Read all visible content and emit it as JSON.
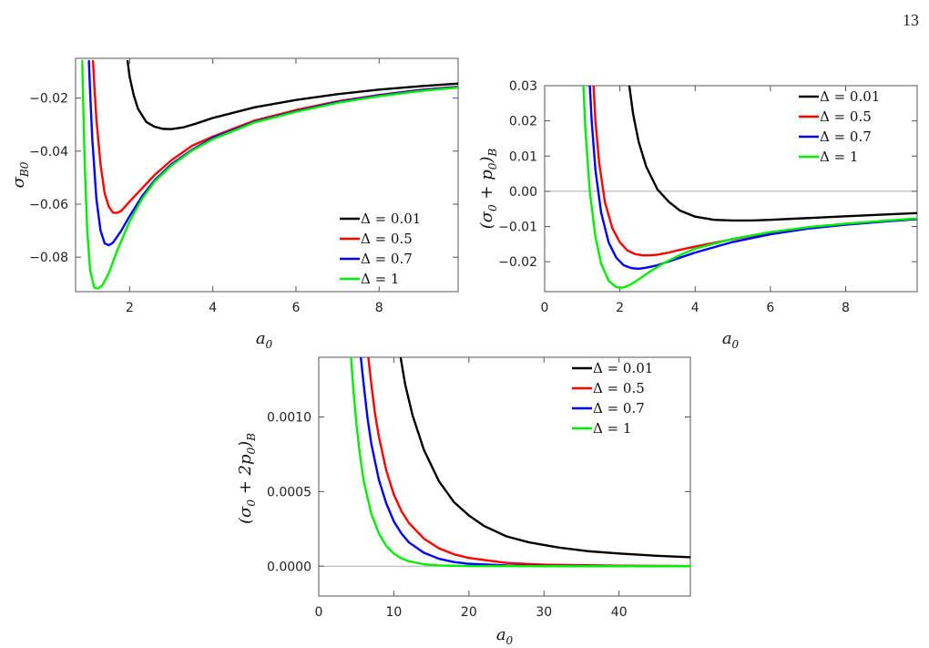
{
  "page_number": "13",
  "chart_data": [
    {
      "type": "line",
      "id": "panel-1",
      "xlabel": "a_0",
      "ylabel": "σ_{B0}",
      "xlim": [
        0.7,
        9.9
      ],
      "ylim": [
        -0.093,
        -0.005
      ],
      "xticks": [
        2,
        4,
        6,
        8
      ],
      "yticks": [
        -0.02,
        -0.04,
        -0.06,
        -0.08
      ],
      "ytick_labels": [
        "−0.02",
        "−0.04",
        "−0.06",
        "−0.08"
      ],
      "zero_line": false,
      "legend_position": "bottom-right",
      "series": [
        {
          "name": "Δ = 0.01",
          "color": "#000000",
          "x": [
            1.95,
            2.0,
            2.1,
            2.2,
            2.4,
            2.6,
            2.8,
            3.0,
            3.3,
            3.6,
            4.0,
            5.0,
            6.0,
            7.0,
            8.0,
            9.0,
            9.9
          ],
          "y": [
            -0.006,
            -0.012,
            -0.019,
            -0.024,
            -0.029,
            -0.0308,
            -0.0316,
            -0.0317,
            -0.031,
            -0.0296,
            -0.0275,
            -0.0235,
            -0.0207,
            -0.0185,
            -0.0168,
            -0.0155,
            -0.0145
          ]
        },
        {
          "name": "Δ = 0.5",
          "color": "#ff0000",
          "x": [
            1.12,
            1.15,
            1.2,
            1.3,
            1.4,
            1.5,
            1.6,
            1.7,
            1.8,
            2.0,
            2.3,
            2.6,
            3.0,
            3.5,
            4.0,
            5.0,
            6.0,
            7.0,
            8.0,
            9.0,
            9.9
          ],
          "y": [
            -0.006,
            -0.015,
            -0.028,
            -0.045,
            -0.056,
            -0.061,
            -0.0632,
            -0.0633,
            -0.0625,
            -0.059,
            -0.054,
            -0.049,
            -0.0435,
            -0.038,
            -0.0345,
            -0.0285,
            -0.0245,
            -0.0212,
            -0.0188,
            -0.0169,
            -0.0157
          ]
        },
        {
          "name": "Δ = 0.7",
          "color": "#0000ff",
          "x": [
            1.02,
            1.05,
            1.1,
            1.2,
            1.3,
            1.4,
            1.5,
            1.6,
            1.8,
            2.0,
            2.3,
            2.6,
            3.0,
            3.5,
            4.0,
            5.0,
            6.0,
            7.0,
            8.0,
            9.0,
            9.9
          ],
          "y": [
            -0.006,
            -0.018,
            -0.035,
            -0.058,
            -0.07,
            -0.0748,
            -0.0755,
            -0.0745,
            -0.07,
            -0.0645,
            -0.057,
            -0.051,
            -0.045,
            -0.0395,
            -0.035,
            -0.029,
            -0.025,
            -0.0215,
            -0.019,
            -0.017,
            -0.0158
          ]
        },
        {
          "name": "Δ = 1",
          "color": "#00ee00",
          "x": [
            0.86,
            0.88,
            0.92,
            0.98,
            1.05,
            1.15,
            1.25,
            1.35,
            1.5,
            1.7,
            2.0,
            2.3,
            2.6,
            3.0,
            3.5,
            4.0,
            5.0,
            6.0,
            7.0,
            8.0,
            9.0,
            9.9
          ],
          "y": [
            -0.006,
            -0.02,
            -0.045,
            -0.07,
            -0.085,
            -0.0915,
            -0.0918,
            -0.0905,
            -0.086,
            -0.0775,
            -0.0665,
            -0.058,
            -0.0515,
            -0.0455,
            -0.0398,
            -0.0355,
            -0.0292,
            -0.0252,
            -0.0218,
            -0.0193,
            -0.0173,
            -0.016
          ]
        }
      ]
    },
    {
      "type": "line",
      "id": "panel-2",
      "xlabel": "a_0",
      "ylabel": "(σ_0 + p_0)_B",
      "xlim": [
        0,
        9.9
      ],
      "ylim": [
        -0.0285,
        0.03
      ],
      "xticks": [
        0,
        2,
        4,
        6,
        8
      ],
      "yticks": [
        0.03,
        0.02,
        0.01,
        0.0,
        -0.01,
        -0.02
      ],
      "ytick_labels": [
        "0.03",
        "0.02",
        "0.01",
        "0.00",
        "−0.01",
        "−0.02"
      ],
      "zero_line": true,
      "legend_position": "top-right",
      "series": [
        {
          "name": "Δ = 0.01",
          "color": "#000000",
          "x": [
            2.25,
            2.35,
            2.5,
            2.7,
            3.0,
            3.3,
            3.6,
            4.0,
            4.5,
            5.0,
            5.5,
            6.0,
            7.0,
            8.0,
            9.0,
            9.9
          ],
          "y": [
            0.03,
            0.022,
            0.014,
            0.007,
            0.0005,
            -0.003,
            -0.0055,
            -0.0072,
            -0.0081,
            -0.0083,
            -0.0083,
            -0.0081,
            -0.0076,
            -0.0071,
            -0.0066,
            -0.0062
          ]
        },
        {
          "name": "Δ = 0.5",
          "color": "#ff0000",
          "x": [
            1.3,
            1.35,
            1.45,
            1.6,
            1.8,
            2.0,
            2.2,
            2.4,
            2.6,
            2.8,
            3.0,
            3.3,
            3.6,
            4.0,
            5.0,
            6.0,
            7.0,
            8.0,
            9.0,
            9.9
          ],
          "y": [
            0.03,
            0.02,
            0.008,
            -0.003,
            -0.0105,
            -0.0145,
            -0.0168,
            -0.0178,
            -0.0182,
            -0.0182,
            -0.018,
            -0.0174,
            -0.0166,
            -0.0157,
            -0.0136,
            -0.0118,
            -0.0104,
            -0.0094,
            -0.0085,
            -0.0078
          ]
        },
        {
          "name": "Δ = 0.7",
          "color": "#0000ff",
          "x": [
            1.2,
            1.25,
            1.35,
            1.5,
            1.7,
            1.9,
            2.1,
            2.3,
            2.5,
            2.7,
            3.0,
            3.5,
            4.0,
            5.0,
            6.0,
            7.0,
            8.0,
            9.0,
            9.9
          ],
          "y": [
            0.03,
            0.02,
            0.006,
            -0.006,
            -0.0145,
            -0.0188,
            -0.021,
            -0.0218,
            -0.022,
            -0.0217,
            -0.021,
            -0.0192,
            -0.0174,
            -0.0144,
            -0.0122,
            -0.0106,
            -0.0095,
            -0.0086,
            -0.0079
          ]
        },
        {
          "name": "Δ = 1",
          "color": "#00ee00",
          "x": [
            1.03,
            1.08,
            1.2,
            1.35,
            1.5,
            1.7,
            1.9,
            2.0,
            2.1,
            2.3,
            2.5,
            2.8,
            3.2,
            3.6,
            4.0,
            5.0,
            6.0,
            7.0,
            8.0,
            9.0,
            9.9
          ],
          "y": [
            0.03,
            0.018,
            0.0,
            -0.013,
            -0.0205,
            -0.0254,
            -0.0272,
            -0.0274,
            -0.0273,
            -0.0264,
            -0.025,
            -0.0228,
            -0.0202,
            -0.0181,
            -0.0163,
            -0.0135,
            -0.0116,
            -0.0102,
            -0.0092,
            -0.0084,
            -0.0077
          ]
        }
      ]
    },
    {
      "type": "line",
      "id": "panel-3",
      "xlabel": "a_0",
      "ylabel": "(σ_0 + 2p_0)_B",
      "xlim": [
        0,
        49.5
      ],
      "ylim": [
        -0.0002,
        0.0014
      ],
      "xticks": [
        0,
        10,
        20,
        30,
        40
      ],
      "yticks": [
        0.001,
        0.0005,
        0.0
      ],
      "ytick_labels": [
        "0.0010",
        "0.0005",
        "0.0000"
      ],
      "zero_line": true,
      "legend_position": "top-right",
      "series": [
        {
          "name": "Δ = 0.01",
          "color": "#000000",
          "x": [
            10.9,
            11.5,
            12.5,
            14,
            16,
            18,
            20,
            22,
            25,
            28,
            32,
            36,
            40,
            45,
            49.5
          ],
          "y": [
            0.0014,
            0.00122,
            0.00101,
            0.00078,
            0.00057,
            0.00043,
            0.00034,
            0.00027,
            0.0002,
            0.00016,
            0.000125,
            0.0001,
            8.5e-05,
            7e-05,
            6e-05
          ]
        },
        {
          "name": "Δ = 0.5",
          "color": "#ff0000",
          "x": [
            6.6,
            7.0,
            7.5,
            8.0,
            9.0,
            10,
            11,
            12,
            14,
            16,
            18,
            20,
            25,
            30,
            40,
            49.5
          ],
          "y": [
            0.0014,
            0.00122,
            0.00102,
            0.00087,
            0.00064,
            0.00048,
            0.00037,
            0.00029,
            0.000185,
            0.00012,
            8e-05,
            5.5e-05,
            2.2e-05,
            1e-05,
            3e-06,
            1e-06
          ]
        },
        {
          "name": "Δ = 0.7",
          "color": "#0000ff",
          "x": [
            5.6,
            6.0,
            6.5,
            7.0,
            8.0,
            9.0,
            10,
            11,
            12,
            14,
            16,
            18,
            20,
            25,
            30,
            40,
            49.5
          ],
          "y": [
            0.0014,
            0.00121,
            0.00099,
            0.00082,
            0.00058,
            0.00042,
            0.0003,
            0.00022,
            0.00016,
            9e-05,
            5e-05,
            2.8e-05,
            1.6e-05,
            5e-06,
            2e-06,
            5e-07,
            0.0
          ]
        },
        {
          "name": "Δ = 1",
          "color": "#00ee00",
          "x": [
            4.3,
            4.6,
            5.0,
            5.5,
            6.0,
            7.0,
            8.0,
            9.0,
            10,
            11,
            12,
            14,
            16,
            20,
            30,
            49.5
          ],
          "y": [
            0.0014,
            0.00119,
            0.00096,
            0.00074,
            0.00057,
            0.00035,
            0.00022,
            0.000135,
            8.5e-05,
            5.3e-05,
            3.3e-05,
            1.3e-05,
            5e-06,
            1e-06,
            0.0,
            0.0
          ]
        }
      ]
    }
  ]
}
